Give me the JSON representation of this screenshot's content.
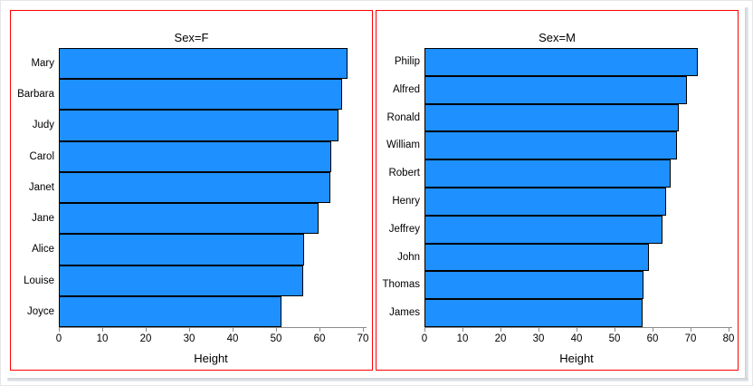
{
  "style": {
    "background": "#ffffff",
    "bar_fill": "#1e90ff",
    "bar_border": "#000000",
    "panel_border": "#ff0000",
    "axis_line_color": "#8c8c8c",
    "text_color": "#000000"
  },
  "chart_data": [
    {
      "type": "bar",
      "orientation": "horizontal",
      "title": "Sex=F",
      "xlabel": "Height",
      "categories": [
        "Mary",
        "Barbara",
        "Judy",
        "Carol",
        "Janet",
        "Jane",
        "Alice",
        "Louise",
        "Joyce"
      ],
      "values": [
        66.5,
        65.3,
        64.3,
        62.8,
        62.5,
        59.8,
        56.5,
        56.3,
        51.3
      ],
      "xlim": [
        0,
        70
      ],
      "xticks": [
        0,
        10,
        20,
        30,
        40,
        50,
        60,
        70
      ],
      "grid": false,
      "legend": false
    },
    {
      "type": "bar",
      "orientation": "horizontal",
      "title": "Sex=M",
      "xlabel": "Height",
      "categories": [
        "Philip",
        "Alfred",
        "Ronald",
        "William",
        "Robert",
        "Henry",
        "Jeffrey",
        "John",
        "Thomas",
        "James"
      ],
      "values": [
        72,
        69,
        67,
        66.5,
        64.8,
        63.5,
        62.5,
        59,
        57.5,
        57.3
      ],
      "xlim": [
        0,
        80
      ],
      "xticks": [
        0,
        10,
        20,
        30,
        40,
        50,
        60,
        70,
        80
      ],
      "grid": false,
      "legend": false
    }
  ]
}
